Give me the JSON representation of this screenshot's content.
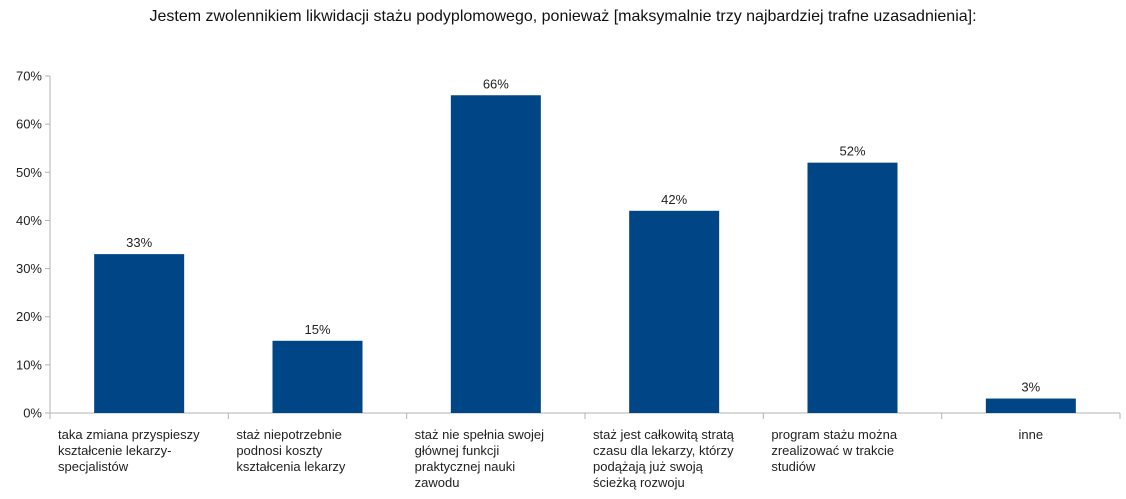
{
  "chart_data": {
    "type": "bar",
    "title": "Jestem zwolennikiem likwidacji stażu podyplomowego, ponieważ [maksymalnie trzy najbardziej trafne uzasadnienia]:",
    "xlabel": "",
    "ylabel": "",
    "ylim": [
      0,
      70
    ],
    "ytick_values": [
      0,
      10,
      20,
      30,
      40,
      50,
      60,
      70
    ],
    "ytick_labels": [
      "0%",
      "10%",
      "20%",
      "30%",
      "40%",
      "50%",
      "60%",
      "70%"
    ],
    "categories": [
      [
        "taka zmiana przyspieszy",
        "kształcenie lekarzy-",
        "specjalistów"
      ],
      [
        "staż niepotrzebnie",
        "podnosi koszty",
        "kształcenia lekarzy"
      ],
      [
        "staż nie spełnia swojej",
        "głównej funkcji",
        "praktycznej nauki",
        "zawodu"
      ],
      [
        "staż jest całkowitą stratą",
        "czasu dla lekarzy, którzy",
        "podążają już swoją",
        "ścieżką rozwoju"
      ],
      [
        "program stażu można",
        "zrealizować w trakcie",
        "studiów"
      ],
      [
        "inne"
      ]
    ],
    "values": [
      33,
      15,
      66,
      42,
      52,
      3
    ],
    "data_labels": [
      "33%",
      "15%",
      "66%",
      "42%",
      "52%",
      "3%"
    ],
    "bar_color": "#004586",
    "grid": false,
    "legend": "none"
  }
}
